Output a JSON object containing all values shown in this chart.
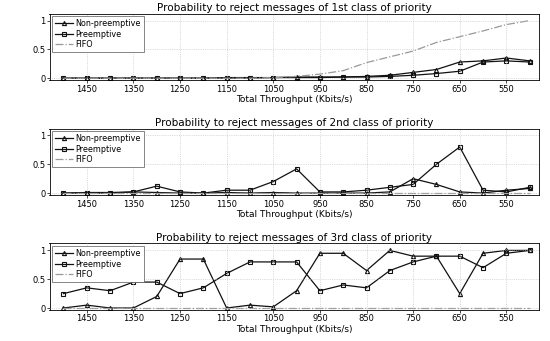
{
  "x": [
    1500,
    1450,
    1400,
    1350,
    1300,
    1250,
    1200,
    1150,
    1100,
    1050,
    1000,
    950,
    900,
    850,
    800,
    750,
    700,
    650,
    600,
    550,
    500
  ],
  "x_tick_vals": [
    1450,
    1350,
    1250,
    1150,
    1050,
    950,
    850,
    750,
    650,
    550
  ],
  "x_tick_labels": [
    "1450",
    "1350",
    "1250",
    "1150",
    "1050",
    "950",
    "850",
    "750",
    "650",
    "550"
  ],
  "p1_np": [
    0,
    0,
    0,
    0,
    0,
    0,
    0,
    0.01,
    0.01,
    0.01,
    0.02,
    0.02,
    0.02,
    0.03,
    0.05,
    0.1,
    0.15,
    0.28,
    0.3,
    0.35,
    0.3
  ],
  "p1_pre": [
    0,
    0,
    0,
    0,
    0,
    0,
    0,
    0,
    0,
    0.01,
    0.01,
    0.01,
    0.02,
    0.02,
    0.03,
    0.05,
    0.08,
    0.12,
    0.28,
    0.3,
    0.28
  ],
  "p1_fifo": [
    0,
    0,
    0,
    0,
    0,
    0,
    0,
    0,
    0,
    0.01,
    0.03,
    0.07,
    0.13,
    0.27,
    0.37,
    0.47,
    0.62,
    0.72,
    0.82,
    0.93,
    1.0
  ],
  "p2_np": [
    0,
    0,
    0,
    0.02,
    0.01,
    0,
    0,
    0.01,
    0,
    0.01,
    0,
    0,
    0,
    0,
    0.02,
    0.25,
    0.15,
    0.02,
    0,
    0.05,
    0.08
  ],
  "p2_pre": [
    0,
    0.01,
    0.01,
    0.02,
    0.12,
    0.02,
    0,
    0.05,
    0.05,
    0.2,
    0.42,
    0.02,
    0.02,
    0.05,
    0.1,
    0.15,
    0.5,
    0.8,
    0.05,
    0.02,
    0.1
  ],
  "p2_fifo": [
    0,
    0,
    0,
    0,
    0,
    0,
    0,
    0,
    0,
    0,
    0,
    0,
    0,
    0,
    0,
    0,
    0,
    0,
    0,
    0,
    0
  ],
  "p3_np": [
    0,
    0.05,
    0,
    0,
    0.2,
    0.85,
    0.85,
    0,
    0.05,
    0.02,
    0.3,
    0.95,
    0.95,
    0.65,
    1.0,
    0.9,
    0.9,
    0.25,
    0.95,
    1.0,
    1.0
  ],
  "p3_pre": [
    0.25,
    0.35,
    0.3,
    0.45,
    0.45,
    0.25,
    0.35,
    0.6,
    0.8,
    0.8,
    0.8,
    0.3,
    0.4,
    0.35,
    0.65,
    0.8,
    0.9,
    0.9,
    0.7,
    0.95,
    1.0
  ],
  "p3_fifo": [
    0,
    0,
    0,
    0,
    0,
    0,
    0,
    0,
    0,
    0,
    0,
    0,
    0,
    0,
    0,
    0,
    0,
    0,
    0,
    0,
    0
  ],
  "col_np": "#111111",
  "col_pre": "#111111",
  "col_fifo": "#999999",
  "title1": "Probability to reject messages of 1st class of priority",
  "title2": "Probability to reject messages of 2nd class of priority",
  "title3": "Probability to reject messages of 3rd class of priority",
  "xlabel": "Total Throughput (Kbits/s)",
  "lbl_np": "Non-preemptive",
  "lbl_pre": "Preemptive",
  "lbl_fifo": "FIFO",
  "fs_title": 7.5,
  "fs_label": 6.5,
  "fs_tick": 6.0,
  "fs_legend": 5.8
}
